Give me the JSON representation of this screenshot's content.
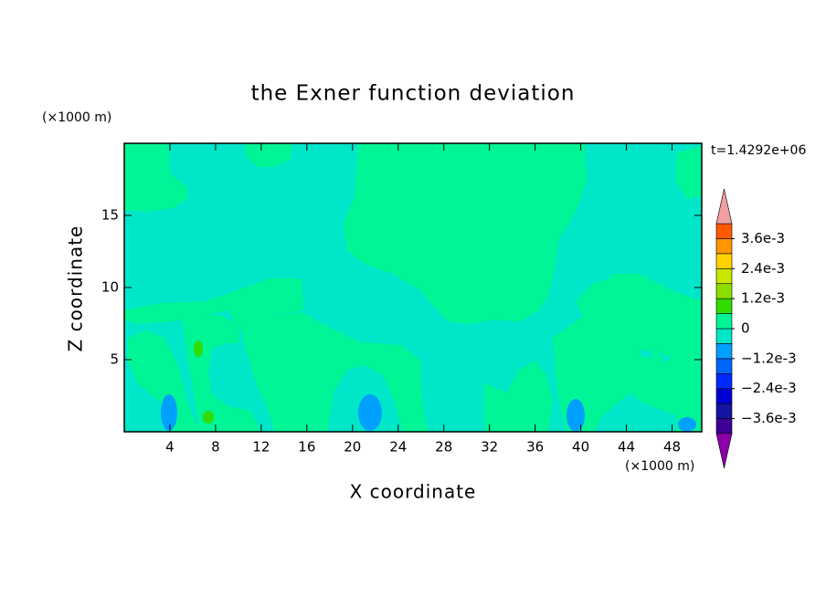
{
  "chart_data": {
    "type": "contour",
    "title": "the Exner function deviation",
    "xlabel": "X coordinate",
    "ylabel": "Z coordinate",
    "xunit": "(×1000 m)",
    "yunit": "(×1000 m)",
    "time_label": "t=1.4292e+06",
    "xlim": [
      0,
      50.6
    ],
    "xticks": [
      4,
      8,
      12,
      16,
      20,
      24,
      28,
      32,
      36,
      40,
      44,
      48
    ],
    "ylim": [
      0,
      20
    ],
    "yticks": [
      5,
      10,
      15
    ],
    "levels": [
      -0.0042,
      -0.0036,
      -0.003,
      -0.0024,
      -0.0018,
      -0.0012,
      -0.0006,
      0,
      0.0006,
      0.0012,
      0.0018,
      0.0024,
      0.003,
      0.0036,
      0.0042
    ],
    "level_colors": [
      "#5a0096",
      "#3c0096",
      "#1414a0",
      "#0000d2",
      "#0028ff",
      "#0064ff",
      "#00a0ff",
      "#00e6c8",
      "#00f596",
      "#32dc00",
      "#8cdc00",
      "#c8e600",
      "#ffd200",
      "#ff9600",
      "#ff5a00",
      "#ff1e00"
    ],
    "under_color": "#8c00aa",
    "over_color": "#f0a0a0",
    "colorbar_ticks": [
      {
        "value": 0.0036,
        "label": "3.6e-3"
      },
      {
        "value": 0.0024,
        "label": "2.4e-3"
      },
      {
        "value": 0.0012,
        "label": "1.2e-3"
      },
      0,
      {
        "value": -0.0012,
        "label": "−1.2e-3"
      },
      {
        "value": -0.0024,
        "label": "−2.4e-3"
      },
      {
        "value": -0.0036,
        "label": "−3.6e-3"
      }
    ]
  }
}
